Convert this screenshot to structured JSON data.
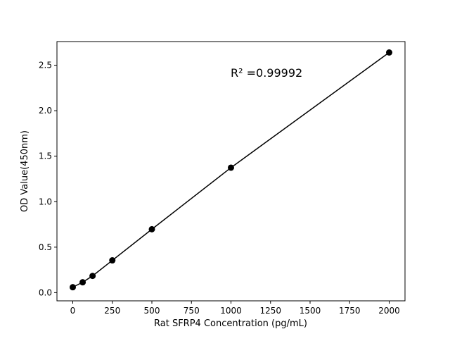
{
  "chart_data": {
    "type": "scatter",
    "title": "",
    "xlabel": "Rat SFRP4 Concentration (pg/mL)",
    "ylabel": "OD Value(450nm)",
    "xlim": [
      -100,
      2100
    ],
    "ylim": [
      -0.09,
      2.76
    ],
    "xticks": [
      0,
      250,
      500,
      750,
      1000,
      1250,
      1500,
      1750,
      2000
    ],
    "yticks": [
      0.0,
      0.5,
      1.0,
      1.5,
      2.0,
      2.5
    ],
    "xtick_labels": [
      "0",
      "250",
      "500",
      "750",
      "1000",
      "1250",
      "1500",
      "1750",
      "2000"
    ],
    "ytick_labels": [
      "0.0",
      "0.5",
      "1.0",
      "1.5",
      "2.0",
      "2.5"
    ],
    "grid": false,
    "series": [
      {
        "x": [
          0,
          62.5,
          125,
          250,
          500,
          1000,
          2000
        ],
        "y": [
          0.06,
          0.114,
          0.184,
          0.355,
          0.697,
          1.374,
          2.64
        ],
        "color": "#000000",
        "marker": "circle",
        "line": true
      }
    ],
    "annotation": "R² =0.99992"
  }
}
